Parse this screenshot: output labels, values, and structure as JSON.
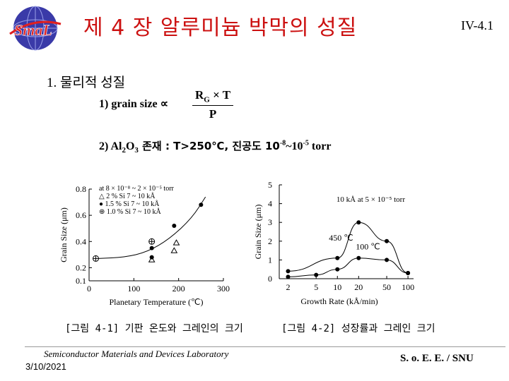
{
  "header": {
    "title": "제 4 장  알루미늄 박막의 성질",
    "page_number": "IV-4.1",
    "logo_text": "SmaL"
  },
  "section": {
    "heading": "1. 물리적 성질"
  },
  "items": {
    "item1_label": "1) grain size ∝",
    "formula_num": "R",
    "formula_num_sub": "G",
    "formula_num_rest": " × T",
    "formula_den": "P",
    "item2_prefix": "2) Al",
    "item2_sub1": "2",
    "item2_mid": "O",
    "item2_sub2": "3",
    "item2_rest": " 존재 : T>250℃, 진공도 10",
    "item2_exp1": "-8",
    "item2_tilde": "~10",
    "item2_exp2": "-5",
    "item2_unit": " torr"
  },
  "chart_data": [
    {
      "type": "scatter",
      "xlabel": "Planetary Temperature (℃)",
      "ylabel": "Grain Size (μm)",
      "xlim": [
        0,
        300
      ],
      "ylim": [
        0.1,
        0.8
      ],
      "x_ticks": [
        "0",
        "100",
        "200",
        "300"
      ],
      "y_ticks": [
        "0.1",
        "0.2",
        "0.4",
        "0.6",
        "0.8"
      ],
      "legend": [
        "at 8 × 10⁻⁸ ~ 2 × 10⁻⁵ torr",
        "△  2 % Si 7 ~ 10 kÅ",
        "●  1.5 % Si 7 ~ 10 kÅ",
        "⊕  1.0 % Si 7 ~ 10 kÅ"
      ],
      "series": [
        {
          "marker": "circle",
          "points": [
            [
              140,
              0.35
            ],
            [
              190,
              0.52
            ],
            [
              250,
              0.68
            ],
            [
              140,
              0.28
            ]
          ]
        },
        {
          "marker": "triangle",
          "points": [
            [
              140,
              0.26
            ],
            [
              195,
              0.39
            ],
            [
              190,
              0.33
            ]
          ]
        },
        {
          "marker": "circle-cross",
          "points": [
            [
              15,
              0.27
            ],
            [
              140,
              0.4
            ]
          ]
        }
      ],
      "fit_curve": [
        [
          20,
          0.27
        ],
        [
          80,
          0.28
        ],
        [
          130,
          0.32
        ],
        [
          180,
          0.42
        ],
        [
          230,
          0.58
        ],
        [
          260,
          0.74
        ]
      ],
      "caption": "[그림 4-1] 기판 온도와 그레인의 크기"
    },
    {
      "type": "line",
      "xlabel": "Growth Rate (kÅ/min)",
      "ylabel": "Grain Size (μm)",
      "x_scale": "log",
      "xlim": [
        1.5,
        120
      ],
      "ylim": [
        0,
        5
      ],
      "x_ticks": [
        "2",
        "5",
        "10",
        "20",
        "50",
        "100"
      ],
      "y_ticks": [
        "0",
        "1",
        "2",
        "3",
        "4",
        "5"
      ],
      "legend_note": "10 kÅ at 5 × 10⁻⁵ torr",
      "series": [
        {
          "name": "450 ℃",
          "x": [
            2,
            10,
            20,
            50,
            100
          ],
          "y": [
            0.4,
            1.1,
            3.0,
            2.0,
            0.3
          ]
        },
        {
          "name": "100 ℃",
          "x": [
            2,
            5,
            10,
            20,
            50,
            100
          ],
          "y": [
            0.1,
            0.2,
            0.5,
            1.1,
            1.0,
            0.3
          ]
        }
      ],
      "caption": "[그림 4-2] 성장률과 그레인 크기"
    }
  ],
  "footer": {
    "lab": "Semiconductor Materials and Devices Laboratory",
    "date": "3/10/2021",
    "org": "S. o. E. E. / SNU"
  },
  "colors": {
    "title": "#cc1111",
    "logo_globe": "#2a2aa0"
  }
}
